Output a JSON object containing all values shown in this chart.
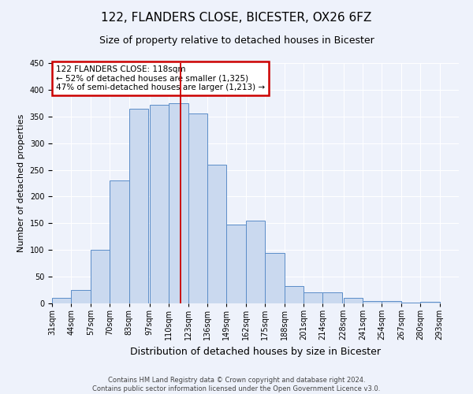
{
  "title": "122, FLANDERS CLOSE, BICESTER, OX26 6FZ",
  "subtitle": "Size of property relative to detached houses in Bicester",
  "xlabel": "Distribution of detached houses by size in Bicester",
  "ylabel": "Number of detached properties",
  "bin_labels": [
    "31sqm",
    "44sqm",
    "57sqm",
    "70sqm",
    "83sqm",
    "97sqm",
    "110sqm",
    "123sqm",
    "136sqm",
    "149sqm",
    "162sqm",
    "175sqm",
    "188sqm",
    "201sqm",
    "214sqm",
    "228sqm",
    "241sqm",
    "254sqm",
    "267sqm",
    "280sqm",
    "293sqm"
  ],
  "bin_edges": [
    31,
    44,
    57,
    70,
    83,
    97,
    110,
    123,
    136,
    149,
    162,
    175,
    188,
    201,
    214,
    228,
    241,
    254,
    267,
    280,
    293
  ],
  "bar_heights": [
    10,
    25,
    100,
    230,
    365,
    372,
    375,
    355,
    260,
    147,
    155,
    95,
    33,
    21,
    21,
    10,
    5,
    5,
    2,
    3
  ],
  "bar_color": "#cad9ef",
  "bar_edge_color": "#5b8dc8",
  "background_color": "#eef2fb",
  "vline_x": 118,
  "vline_color": "#cc0000",
  "ylim": [
    0,
    450
  ],
  "yticks": [
    0,
    50,
    100,
    150,
    200,
    250,
    300,
    350,
    400,
    450
  ],
  "annotation_box_text": "122 FLANDERS CLOSE: 118sqm\n← 52% of detached houses are smaller (1,325)\n47% of semi-detached houses are larger (1,213) →",
  "annotation_box_color": "#cc0000",
  "footer_text": "Contains HM Land Registry data © Crown copyright and database right 2024.\nContains public sector information licensed under the Open Government Licence v3.0.",
  "title_fontsize": 11,
  "subtitle_fontsize": 9,
  "ylabel_fontsize": 8,
  "xlabel_fontsize": 9,
  "tick_fontsize": 7,
  "footer_fontsize": 6
}
